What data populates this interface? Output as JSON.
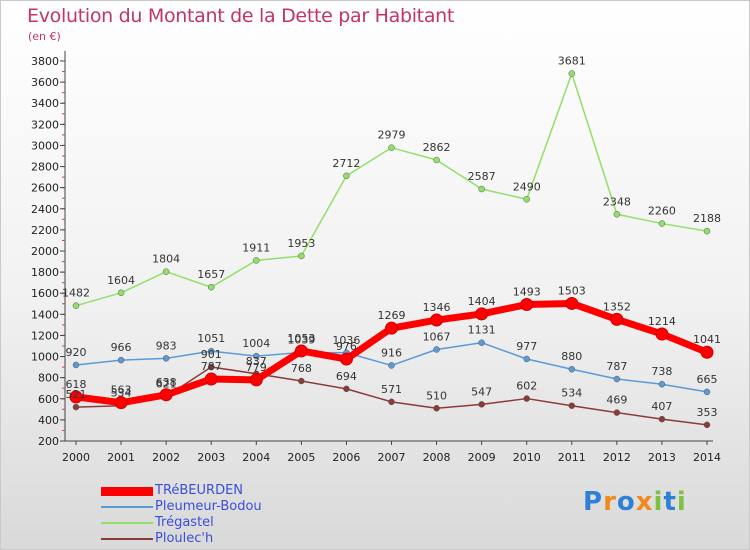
{
  "chart_data": {
    "type": "line",
    "title": "Evolution du Montant de la Dette par Habitant",
    "subtitle": "(en €)",
    "categories": [
      "2000",
      "2001",
      "2002",
      "2003",
      "2004",
      "2005",
      "2006",
      "2007",
      "2008",
      "2009",
      "2010",
      "2011",
      "2012",
      "2013",
      "2014"
    ],
    "yticks": [
      "200",
      "400",
      "600",
      "800",
      "1000",
      "1200",
      "1400",
      "1600",
      "1800",
      "2000",
      "2200",
      "2400",
      "2600",
      "2800",
      "3000",
      "3200",
      "3400",
      "3600",
      "3800"
    ],
    "ylim": [
      200,
      3800
    ],
    "grid": false,
    "legend_position": "bottom-left",
    "series": [
      {
        "name": "TRéBEURDEN",
        "color": "#ff0000",
        "values": [
          618,
          563,
          638,
          787,
          779,
          1053,
          976,
          1269,
          1346,
          1404,
          1493,
          1503,
          1352,
          1214,
          1041
        ],
        "labels": [
          "618",
          "563",
          "638",
          "787",
          "779",
          "1053",
          "976",
          "1269",
          "1346",
          "1404",
          "1493",
          "1503",
          "1352",
          "1214",
          "1041"
        ]
      },
      {
        "name": "Pleumeur-Bodou",
        "color": "#5b9bd5",
        "values": [
          920,
          966,
          983,
          1051,
          1004,
          1039,
          1036,
          916,
          1067,
          1131,
          977,
          880,
          787,
          738,
          665
        ],
        "labels": [
          "920",
          "966",
          "983",
          "1051",
          "1004",
          "1039",
          "1036",
          "916",
          "1067",
          "1131",
          "977",
          "880",
          "787",
          "738",
          "665"
        ]
      },
      {
        "name": "Trégastel",
        "color": "#90e06a",
        "values": [
          1482,
          1604,
          1804,
          1657,
          1911,
          1953,
          2712,
          2979,
          2862,
          2587,
          2490,
          3681,
          2348,
          2260,
          2188
        ],
        "labels": [
          "1482",
          "1604",
          "1804",
          "1657",
          "1911",
          "1953",
          "2712",
          "2979",
          "2862",
          "2587",
          "2490",
          "3681",
          "2348",
          "2260",
          "2188"
        ]
      },
      {
        "name": "Ploulec'h",
        "color": "#8b3a3a",
        "values": [
          521,
          534,
          621,
          901,
          837,
          768,
          694,
          571,
          510,
          547,
          602,
          534,
          469,
          407,
          353
        ],
        "labels": [
          "521",
          "534",
          "621",
          "901",
          "837",
          "768",
          "694",
          "571",
          "510",
          "547",
          "602",
          "534",
          "469",
          "407",
          "353"
        ]
      }
    ]
  },
  "brand": {
    "letters": [
      "P",
      "r",
      "o",
      "x",
      "i",
      "t",
      "i"
    ],
    "colors": [
      "#2e7fd6",
      "#f18a1d",
      "#2e7fd6",
      "#f18a1d",
      "#7cc242",
      "#2e7fd6",
      "#7cc242"
    ]
  }
}
